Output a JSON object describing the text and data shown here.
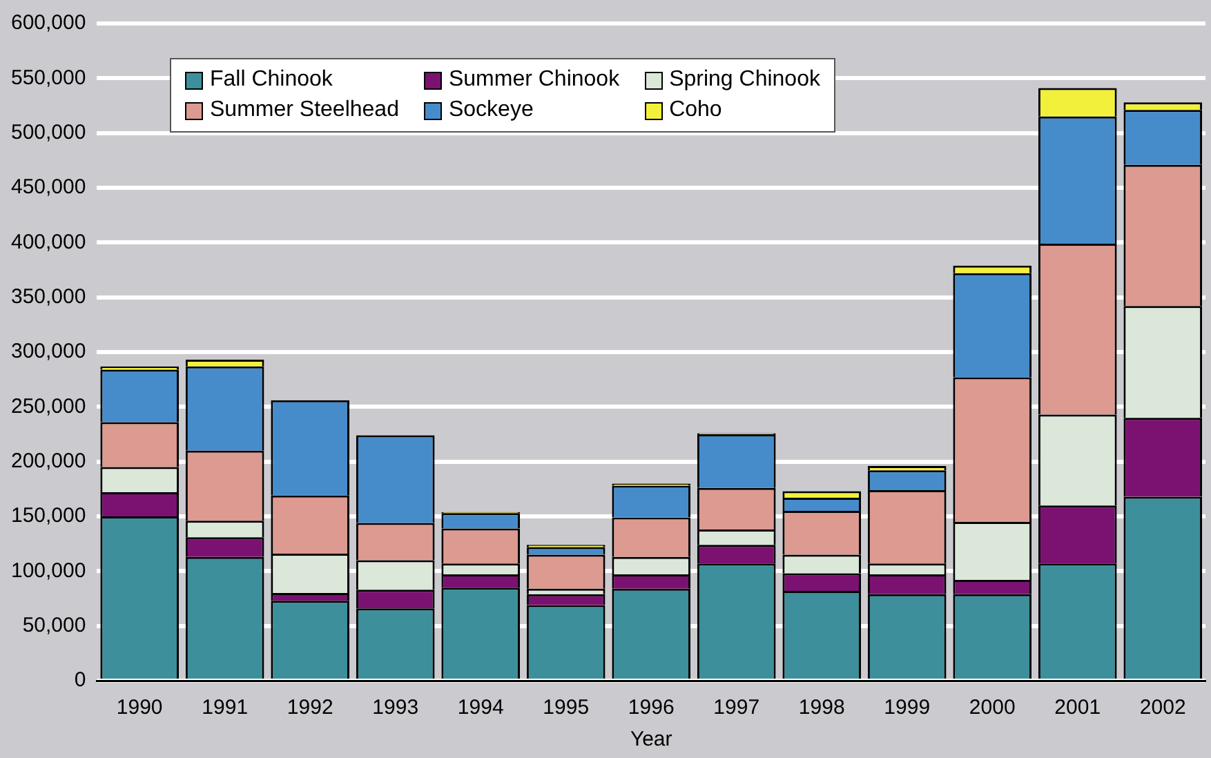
{
  "chart_data": {
    "type": "bar",
    "stacked": true,
    "xlabel": "Year",
    "categories": [
      "1990",
      "1991",
      "1992",
      "1993",
      "1994",
      "1995",
      "1996",
      "1997",
      "1998",
      "1999",
      "2000",
      "2001",
      "2002"
    ],
    "series": [
      {
        "name": "Fall Chinook",
        "color": "#3d8f9b",
        "values": [
          150000,
          113000,
          73000,
          66000,
          85000,
          69000,
          84000,
          107000,
          82000,
          79000,
          79000,
          107000,
          168000
        ]
      },
      {
        "name": "Summer Chinook",
        "color": "#7b1272",
        "values": [
          22000,
          18000,
          7000,
          17000,
          12000,
          10000,
          13000,
          17000,
          16000,
          18000,
          13000,
          53000,
          72000
        ]
      },
      {
        "name": "Spring Chinook",
        "color": "#dbe7d9",
        "values": [
          23000,
          15000,
          36000,
          27000,
          10000,
          5000,
          16000,
          14000,
          17000,
          10000,
          53000,
          83000,
          102000
        ]
      },
      {
        "name": "Summer Steelhead",
        "color": "#dc9a90",
        "values": [
          41000,
          64000,
          53000,
          34000,
          32000,
          31000,
          36000,
          38000,
          40000,
          67000,
          132000,
          156000,
          129000
        ]
      },
      {
        "name": "Sockeye",
        "color": "#468ccb",
        "values": [
          48000,
          77000,
          87000,
          80000,
          14000,
          7000,
          29000,
          49000,
          12000,
          18000,
          95000,
          116000,
          50000
        ]
      },
      {
        "name": "Coho",
        "color": "#f2f03a",
        "values": [
          3000,
          6000,
          0,
          0,
          1000,
          2000,
          2000,
          1000,
          6000,
          4000,
          7000,
          26000,
          7000
        ]
      }
    ],
    "ylim": [
      0,
      600000
    ],
    "yticks": [
      {
        "value": 0,
        "label": "0"
      },
      {
        "value": 50000,
        "label": "50,000"
      },
      {
        "value": 100000,
        "label": "100,000"
      },
      {
        "value": 150000,
        "label": "150,000"
      },
      {
        "value": 200000,
        "label": "200,000"
      },
      {
        "value": 250000,
        "label": "250,000"
      },
      {
        "value": 300000,
        "label": "300,000"
      },
      {
        "value": 350000,
        "label": "350,000"
      },
      {
        "value": 400000,
        "label": "400,000"
      },
      {
        "value": 450000,
        "label": "450,000"
      },
      {
        "value": 500000,
        "label": "500,000"
      },
      {
        "value": 550000,
        "label": "550,000"
      },
      {
        "value": 600000,
        "label": "600,000"
      }
    ],
    "grid": "y",
    "legend": "top left"
  }
}
